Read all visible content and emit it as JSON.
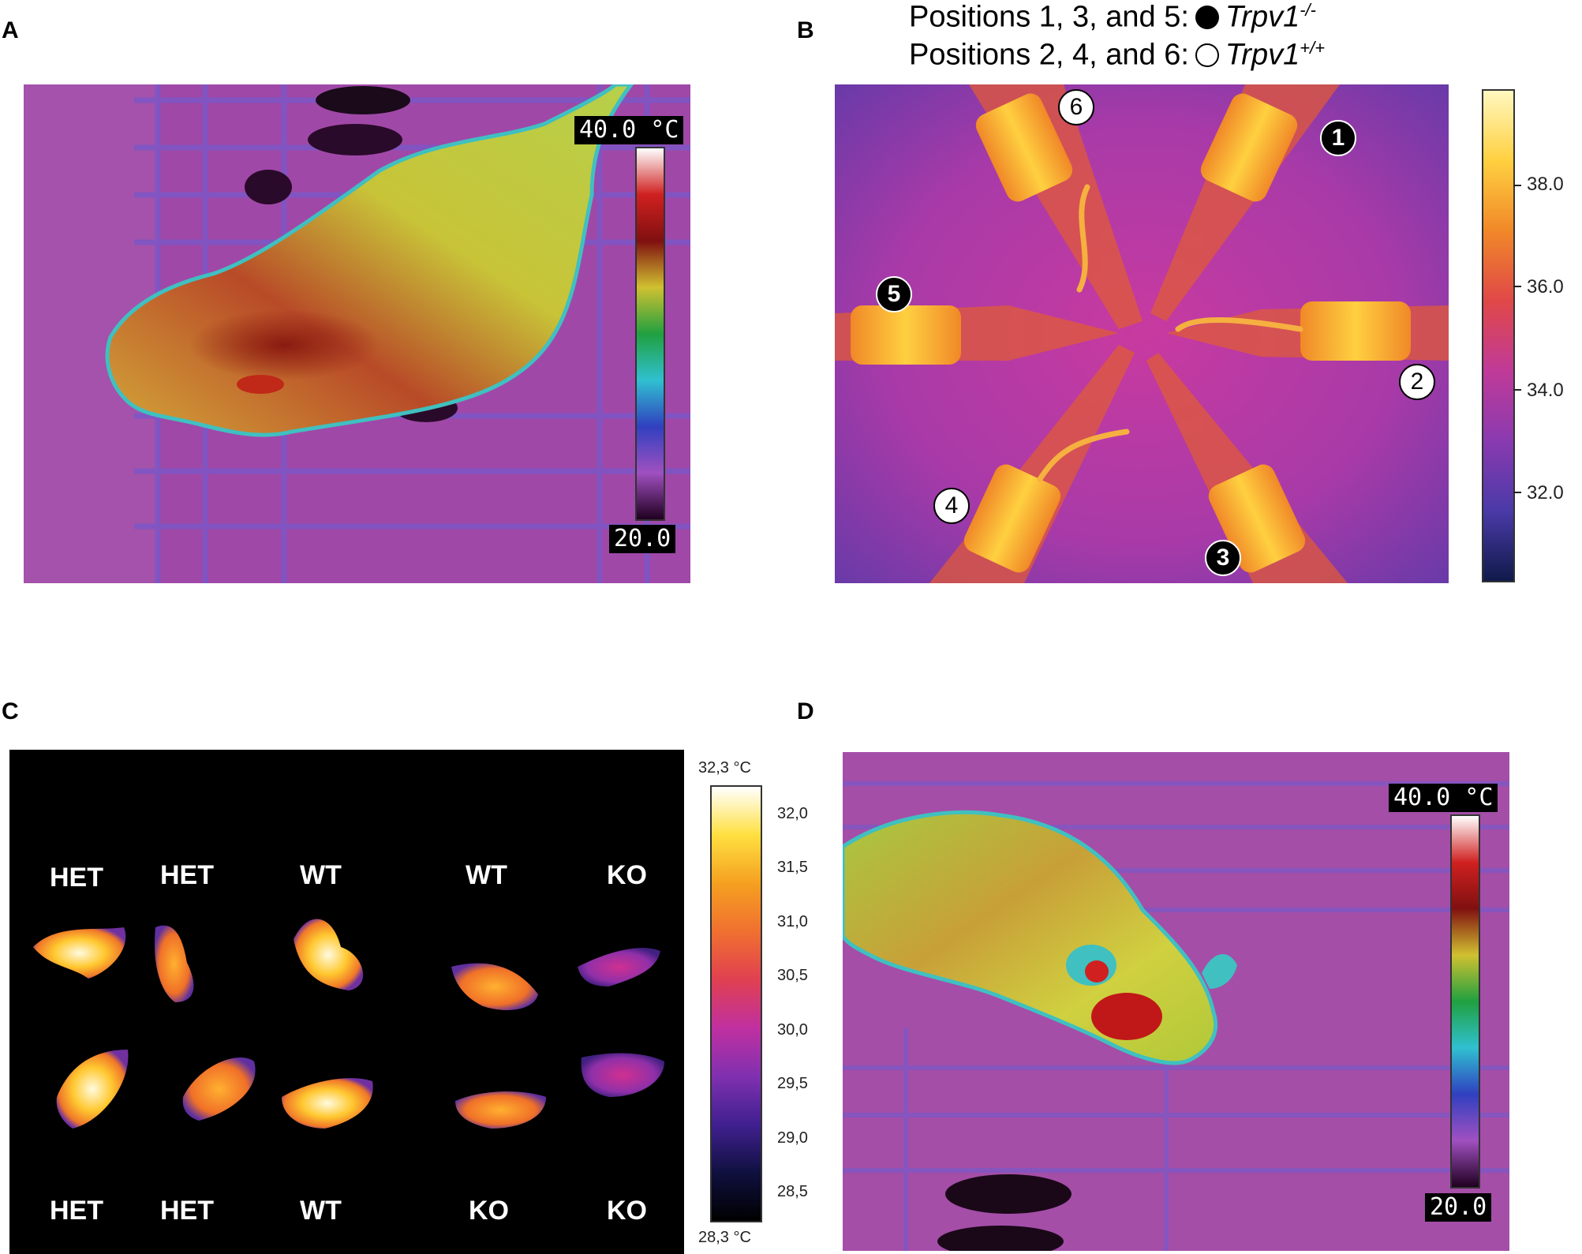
{
  "panels": {
    "a": {
      "letter": "A",
      "scale_max": "40.0 °C",
      "scale_min": "20.0"
    },
    "b": {
      "letter": "B",
      "legend": {
        "line1_prefix": "Positions 1, 3, and 5:",
        "line1_gene": "Trpv1",
        "line1_sup": "-/-",
        "line2_prefix": "Positions 2, 4, and 6:",
        "line2_gene": "Trpv1",
        "line2_sup": "+/+"
      },
      "colorbar_ticks": [
        "38.0",
        "36.0",
        "34.0",
        "32.0"
      ],
      "markers": [
        {
          "label": "1",
          "style": "filled"
        },
        {
          "label": "2",
          "style": "open"
        },
        {
          "label": "3",
          "style": "filled"
        },
        {
          "label": "4",
          "style": "open"
        },
        {
          "label": "5",
          "style": "filled"
        },
        {
          "label": "6",
          "style": "open"
        }
      ]
    },
    "c": {
      "letter": "C",
      "scale_top": "32,3 °C",
      "scale_bottom": "28,3 °C",
      "colorbar_ticks": [
        "32,0",
        "31,5",
        "31,0",
        "30,5",
        "30,0",
        "29,5",
        "29,0",
        "28,5"
      ],
      "top_labels": [
        "HET",
        "HET",
        "WT",
        "WT",
        "KO"
      ],
      "bottom_labels": [
        "HET",
        "HET",
        "WT",
        "KO",
        "KO"
      ]
    },
    "d": {
      "letter": "D",
      "scale_max": "40.0 °C",
      "scale_min": "20.0"
    }
  },
  "colors": {
    "thermal_background": "#a24aa8",
    "ironbow_hot": "#ffd030",
    "rainbow_body": "#c8d23a"
  }
}
